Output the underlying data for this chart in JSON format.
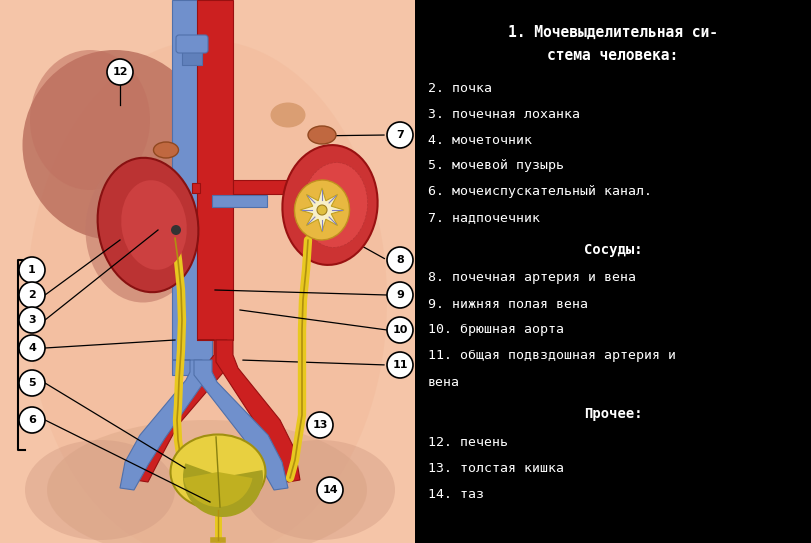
{
  "skin_color": "#f5c5a8",
  "skin_dark": "#e8a898",
  "skin_inner": "#f0b898",
  "kidney_red": "#cc3333",
  "kidney_inner": "#dd5544",
  "liver_brown": "#b06050",
  "liver_light": "#c07868",
  "vein_blue": "#7090cc",
  "vein_dark": "#5070aa",
  "artery_red": "#cc2020",
  "artery_dark": "#991010",
  "ureter_yellow": "#e8c820",
  "ureter_dark": "#b09010",
  "bladder_yellow": "#e8d040",
  "bladder_mid": "#c8b020",
  "bladder_dark": "#a09010",
  "adrenal_color": "#cc7755",
  "pelvis_yellow": "#f0d060",
  "pelvis_white": "#ffffff",
  "title_line1": "1. Мочевыделительная си-",
  "title_line2": "стема человека:",
  "right_panel_labels": [
    [
      "2. почка",
      false
    ],
    [
      "3. почечная лоханка",
      false
    ],
    [
      "4. мочеточник",
      false
    ],
    [
      "5. мочевой пузырь",
      false
    ],
    [
      "6. мочеиспускательный канал.",
      false
    ],
    [
      "7. надпочечник",
      false
    ],
    [
      "Сосуды:",
      true
    ],
    [
      "8. почечная артерия и вена",
      false
    ],
    [
      "9. нижняя полая вена",
      false
    ],
    [
      "10. брюшная аорта",
      false
    ],
    [
      "11. общая подвздошная артерия и",
      false
    ],
    [
      "вена",
      false
    ],
    [
      "Прочее:",
      true
    ],
    [
      "12. печень",
      false
    ],
    [
      "13. толстая кишка",
      false
    ],
    [
      "14. таз",
      false
    ]
  ]
}
